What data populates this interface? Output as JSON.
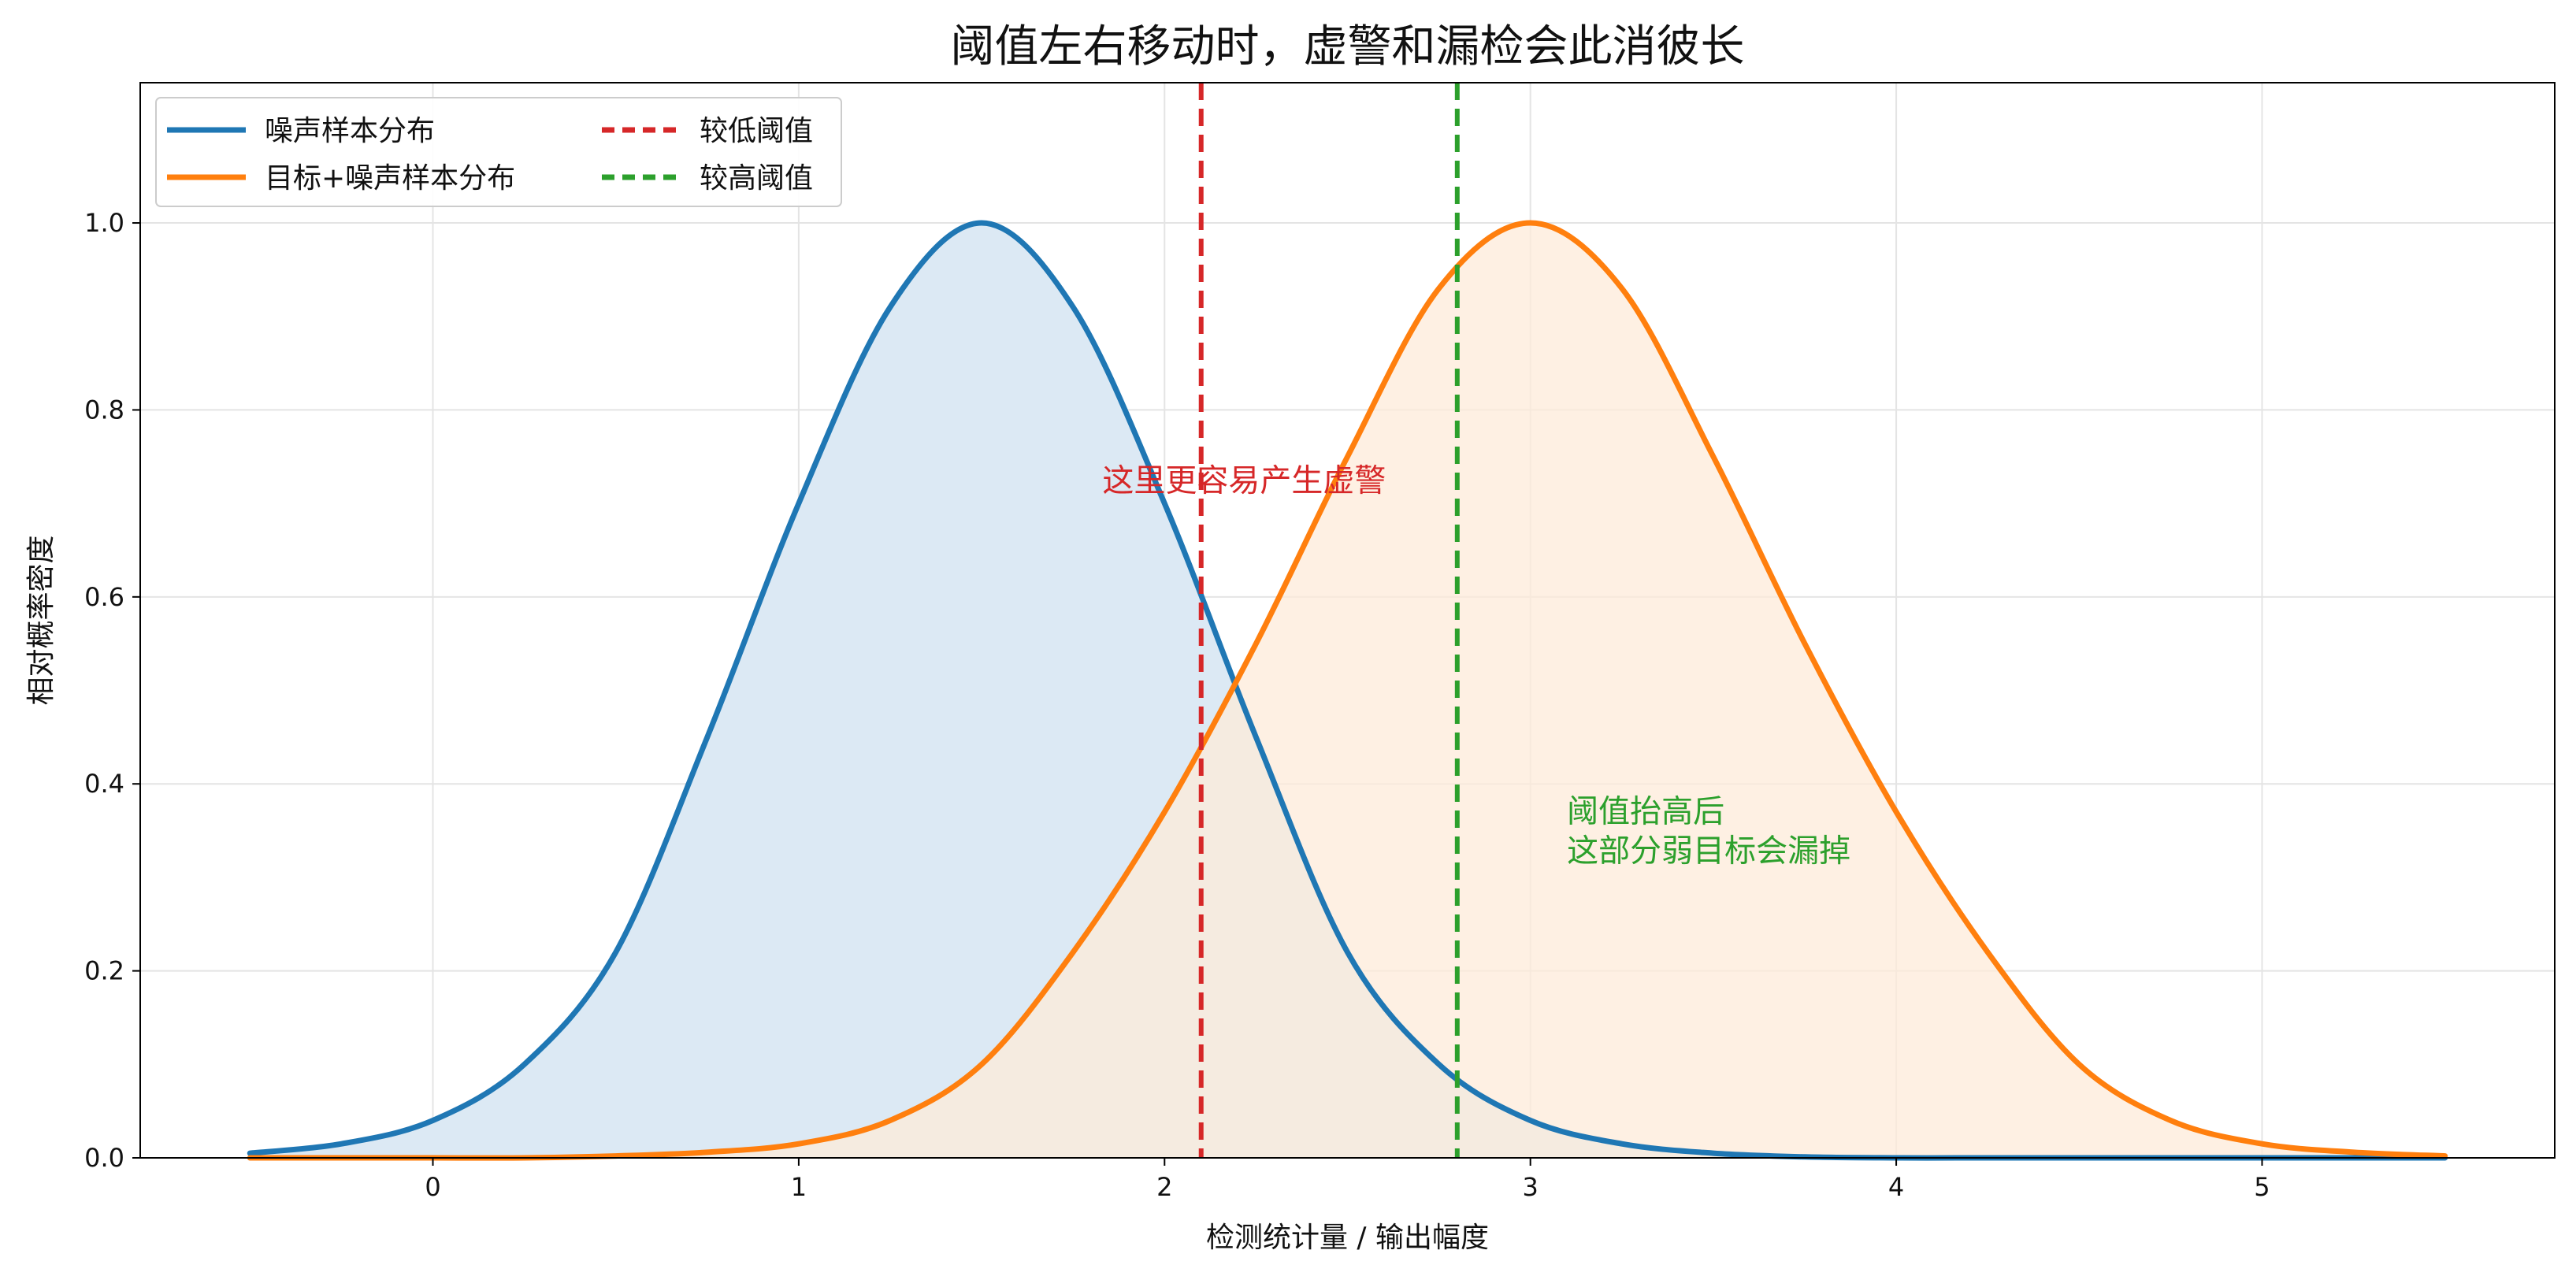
{
  "chart_data": {
    "type": "line",
    "title": "阈值左右移动时，虚警和漏检会此消彼长",
    "xlabel": "检测统计量 / 输出幅度",
    "ylabel": "相对概率密度",
    "xlim": [
      -0.8,
      5.8
    ],
    "ylim": [
      0.0,
      1.15
    ],
    "xticks": [
      0,
      1,
      2,
      3,
      4,
      5
    ],
    "yticks": [
      0.0,
      0.2,
      0.4,
      0.6,
      0.8,
      1.0
    ],
    "xtick_labels": [
      "0",
      "1",
      "2",
      "3",
      "4",
      "5"
    ],
    "ytick_labels": [
      "0.0",
      "0.2",
      "0.4",
      "0.6",
      "0.8",
      "1.0"
    ],
    "grid": true,
    "legend_position": "top-left",
    "series": [
      {
        "name": "噪声样本分布",
        "color": "#1f77b4",
        "fill": "#dce9f4",
        "x": [
          -0.5,
          -0.25,
          0.0,
          0.25,
          0.5,
          0.75,
          1.0,
          1.25,
          1.5,
          1.75,
          2.0,
          2.25,
          2.5,
          2.75,
          3.0,
          3.25,
          3.5,
          3.75,
          4.0,
          4.25,
          4.5,
          4.75,
          5.0,
          5.25,
          5.5
        ],
        "y": [
          0.005,
          0.015,
          0.04,
          0.1,
          0.22,
          0.45,
          0.7,
          0.91,
          1.0,
          0.91,
          0.7,
          0.45,
          0.22,
          0.1,
          0.04,
          0.015,
          0.005,
          0.001,
          0.0,
          0.0,
          0.0,
          0.0,
          0.0,
          0.0,
          0.0
        ]
      },
      {
        "name": "目标+噪声样本分布",
        "color": "#ff7f0e",
        "fill": "#fdebd9",
        "x": [
          -0.5,
          -0.25,
          0.0,
          0.25,
          0.5,
          0.75,
          1.0,
          1.25,
          1.5,
          1.75,
          2.0,
          2.25,
          2.5,
          2.75,
          3.0,
          3.25,
          3.5,
          3.75,
          4.0,
          4.25,
          4.5,
          4.75,
          5.0,
          5.25,
          5.5
        ],
        "y": [
          0.0,
          0.0,
          0.0,
          0.0,
          0.002,
          0.006,
          0.015,
          0.04,
          0.1,
          0.22,
          0.37,
          0.55,
          0.75,
          0.93,
          1.0,
          0.93,
          0.75,
          0.55,
          0.37,
          0.22,
          0.1,
          0.04,
          0.015,
          0.006,
          0.002
        ]
      }
    ],
    "thresholds": [
      {
        "name": "较低阈值",
        "x": 2.1,
        "color": "#d62728"
      },
      {
        "name": "较高阈值",
        "x": 2.8,
        "color": "#2ca02c"
      }
    ],
    "annotations": [
      {
        "lines": [
          "这里更容易产生虚警"
        ],
        "x": 1.83,
        "y": 0.725,
        "color": "#d62728"
      },
      {
        "lines": [
          "阈值抬高后",
          "这部分弱目标会漏掉"
        ],
        "x": 3.1,
        "y": 0.35,
        "color": "#2ca02c"
      }
    ]
  }
}
